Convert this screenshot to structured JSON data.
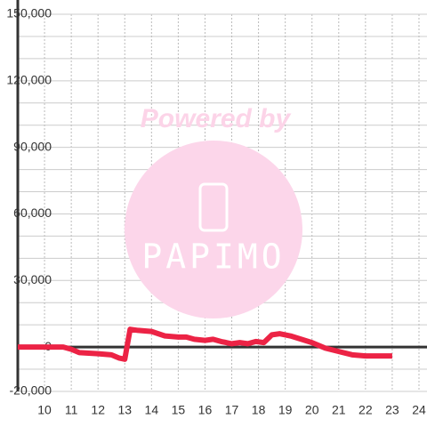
{
  "chart_data": {
    "type": "line",
    "watermark": {
      "line1": "Powered by",
      "line2": "PAPIMO"
    },
    "series": [
      {
        "color": "#ec2345",
        "x": [
          9,
          10,
          10.7,
          11,
          11.3,
          12,
          12.5,
          12.8,
          13.0,
          13.2,
          13.5,
          14,
          14.5,
          15,
          15.3,
          15.6,
          16,
          16.3,
          16.6,
          17,
          17.3,
          17.6,
          17.9,
          18.2,
          18.5,
          18.8,
          19.2,
          19.6,
          20,
          20.5,
          21,
          21.5,
          22,
          22.5,
          23
        ],
        "values": [
          0,
          0,
          0,
          -1000,
          -2500,
          -3000,
          -3500,
          -5000,
          -5500,
          8000,
          7500,
          7000,
          5000,
          4500,
          4500,
          3500,
          3000,
          3500,
          2500,
          1500,
          2000,
          1500,
          2500,
          2000,
          5500,
          6000,
          5000,
          3500,
          2000,
          -500,
          -2000,
          -3500,
          -4000,
          -4000,
          -4000
        ]
      }
    ],
    "xlim": [
      9,
      24.3
    ],
    "xticks": [
      10,
      11,
      12,
      13,
      14,
      15,
      16,
      17,
      18,
      19,
      20,
      21,
      22,
      23,
      24
    ],
    "ylim": [
      -20000,
      150000
    ],
    "yticks": [
      {
        "value": -20000,
        "label": "-20,000"
      },
      0,
      {
        "value": 30000,
        "label": "30,000"
      },
      {
        "value": 60000,
        "label": "60,000"
      },
      {
        "value": 90000,
        "label": "90,000"
      },
      {
        "value": 120000,
        "label": "120,000"
      },
      {
        "value": 150000,
        "label": "150,000"
      }
    ],
    "minor_yticks": [
      -10000,
      10000,
      20000,
      40000,
      50000,
      70000,
      80000,
      100000,
      110000,
      130000,
      140000
    ],
    "grid": true
  }
}
